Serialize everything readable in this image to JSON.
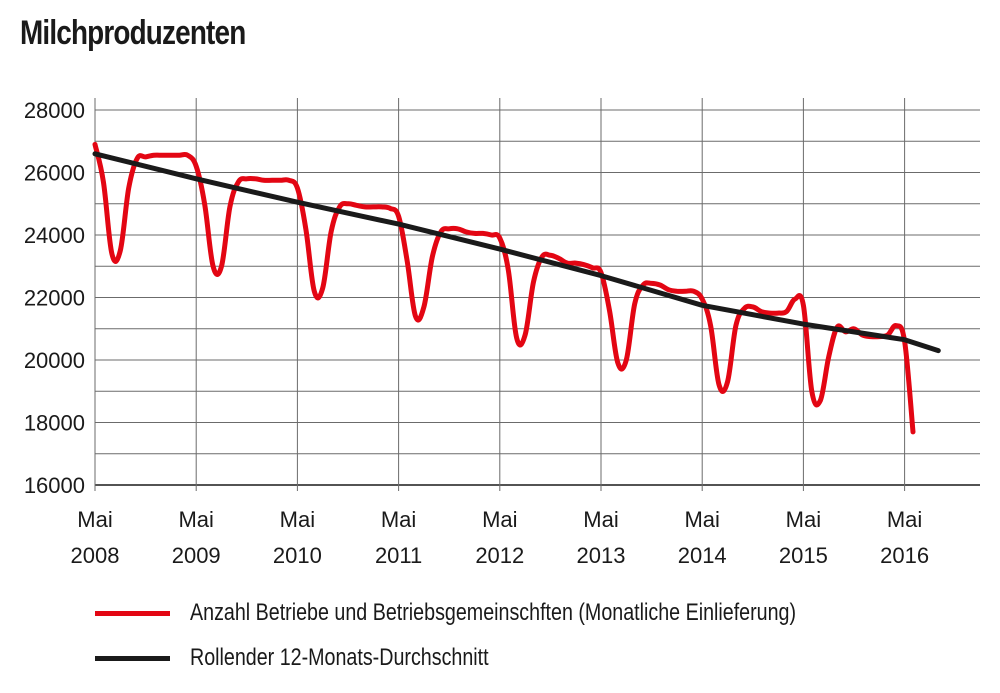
{
  "chart_data": {
    "type": "line",
    "title": "Milchproduzenten",
    "xlabel": "",
    "ylabel": "",
    "ylim": [
      16000,
      28000
    ],
    "yticks": [
      "16000",
      "18000",
      "20000",
      "22000",
      "24000",
      "26000",
      "28000"
    ],
    "xticks": [
      {
        "month": "Mai",
        "year": "2008"
      },
      {
        "month": "Mai",
        "year": "2009"
      },
      {
        "month": "Mai",
        "year": "2010"
      },
      {
        "month": "Mai",
        "year": "2011"
      },
      {
        "month": "Mai",
        "year": "2012"
      },
      {
        "month": "Mai",
        "year": "2013"
      },
      {
        "month": "Mai",
        "year": "2014"
      },
      {
        "month": "Mai",
        "year": "2015"
      },
      {
        "month": "Mai",
        "year": "2016"
      }
    ],
    "grid": true,
    "legend_position": "bottom",
    "series": [
      {
        "name": "Anzahl Betriebe und Betriebsgemeinschften (Monatliche Einlieferung)",
        "color": "#e30613",
        "x": [
          "2008-05",
          "2008-06",
          "2008-07",
          "2008-08",
          "2008-09",
          "2008-10",
          "2008-11",
          "2008-12",
          "2009-01",
          "2009-02",
          "2009-03",
          "2009-04",
          "2009-05",
          "2009-06",
          "2009-07",
          "2009-08",
          "2009-09",
          "2009-10",
          "2009-11",
          "2009-12",
          "2010-01",
          "2010-02",
          "2010-03",
          "2010-04",
          "2010-05",
          "2010-06",
          "2010-07",
          "2010-08",
          "2010-09",
          "2010-10",
          "2010-11",
          "2010-12",
          "2011-01",
          "2011-02",
          "2011-03",
          "2011-04",
          "2011-05",
          "2011-06",
          "2011-07",
          "2011-08",
          "2011-09",
          "2011-10",
          "2011-11",
          "2011-12",
          "2012-01",
          "2012-02",
          "2012-03",
          "2012-04",
          "2012-05",
          "2012-06",
          "2012-07",
          "2012-08",
          "2012-09",
          "2012-10",
          "2012-11",
          "2012-12",
          "2013-01",
          "2013-02",
          "2013-03",
          "2013-04",
          "2013-05",
          "2013-06",
          "2013-07",
          "2013-08",
          "2013-09",
          "2013-10",
          "2013-11",
          "2013-12",
          "2014-01",
          "2014-02",
          "2014-03",
          "2014-04",
          "2014-05",
          "2014-06",
          "2014-07",
          "2014-08",
          "2014-09",
          "2014-10",
          "2014-11",
          "2014-12",
          "2015-01",
          "2015-02",
          "2015-03",
          "2015-04",
          "2015-05",
          "2015-06",
          "2015-07",
          "2015-08",
          "2015-09",
          "2015-10",
          "2015-11",
          "2015-12",
          "2016-01",
          "2016-02",
          "2016-03",
          "2016-04",
          "2016-05",
          "2016-06"
        ],
        "values": [
          26900,
          25700,
          23400,
          23500,
          25500,
          26450,
          26500,
          26550,
          26550,
          26550,
          26550,
          26550,
          26200,
          25000,
          23000,
          23000,
          24900,
          25700,
          25800,
          25800,
          25750,
          25750,
          25750,
          25750,
          25500,
          24200,
          22200,
          22300,
          24100,
          24900,
          25000,
          24950,
          24900,
          24900,
          24900,
          24850,
          24600,
          23200,
          21400,
          21700,
          23300,
          24100,
          24200,
          24200,
          24100,
          24050,
          24050,
          24000,
          23900,
          22900,
          20700,
          20800,
          22500,
          23300,
          23350,
          23250,
          23100,
          23100,
          23050,
          22950,
          22800,
          21600,
          19900,
          20000,
          21800,
          22400,
          22450,
          22400,
          22250,
          22200,
          22200,
          22200,
          21950,
          21100,
          19200,
          19300,
          21100,
          21650,
          21700,
          21550,
          21500,
          21500,
          21550,
          21950,
          21750,
          19000,
          18700,
          20100,
          21050,
          20900,
          21000,
          20800,
          20750,
          20750,
          20800,
          21100,
          20600,
          17700
        ]
      },
      {
        "name": "Rollender 12-Monats-Durchschnitt",
        "color": "#1a1a1a",
        "x": [
          "2008-05",
          "2009-05",
          "2010-05",
          "2011-05",
          "2012-05",
          "2013-05",
          "2014-05",
          "2015-05",
          "2016-05",
          "2016-09"
        ],
        "values": [
          26600,
          25800,
          25050,
          24350,
          23550,
          22700,
          21750,
          21150,
          20650,
          20300
        ]
      }
    ]
  }
}
